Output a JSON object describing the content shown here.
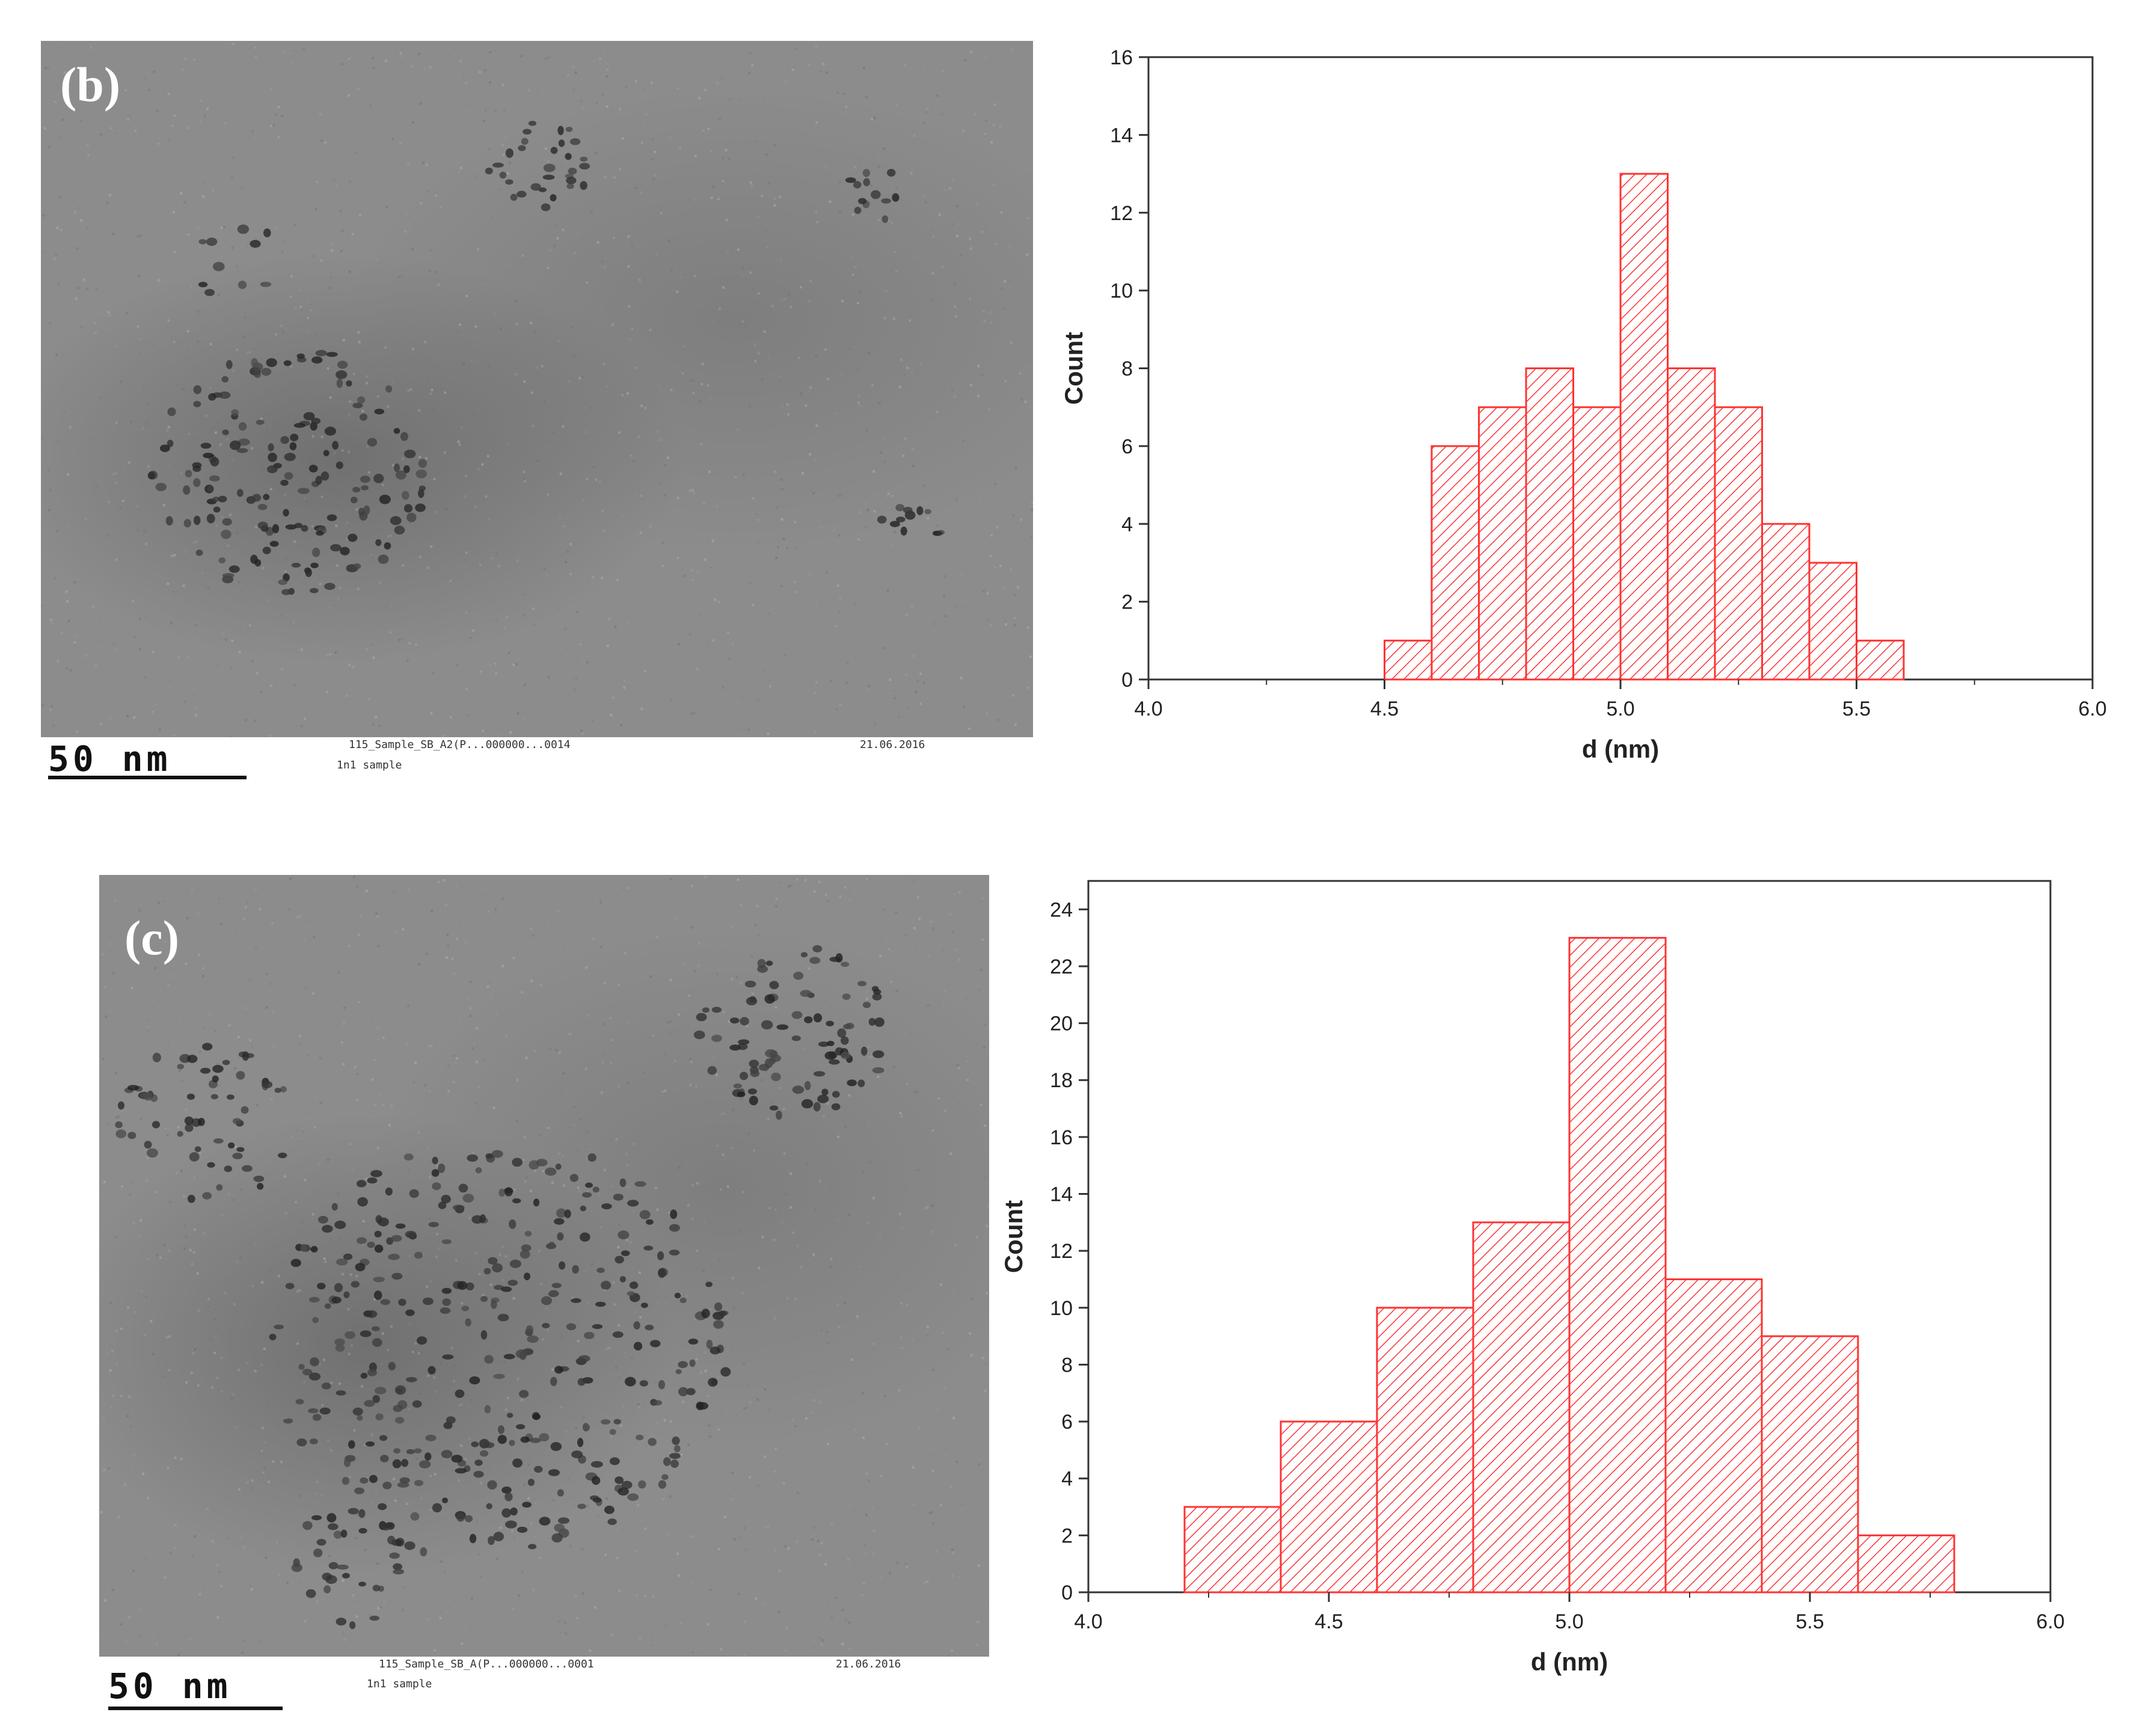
{
  "panels": [
    {
      "label": "(b)",
      "scalebar": "50 nm",
      "footer_left": "115_Sample_SB_A2(P...000000...0014",
      "footer_right": "21.06.2016",
      "footer_sub": "1n1 sample"
    },
    {
      "label": "(c)",
      "scalebar": "50 nm",
      "footer_left": "115_Sample_SB_A(P...000000...0001",
      "footer_right": "21.06.2016",
      "footer_sub": "1n1 sample"
    }
  ],
  "chart_data": [
    {
      "type": "bar",
      "histogram": true,
      "bin_edges": [
        4.5,
        4.6,
        4.7,
        4.8,
        4.9,
        5.0,
        5.1,
        5.2,
        5.3,
        5.4,
        5.5,
        5.6
      ],
      "values": [
        1,
        6,
        7,
        8,
        7,
        13,
        8,
        7,
        4,
        3,
        1
      ],
      "xlabel": "d (nm)",
      "ylabel": "Count",
      "xlim": [
        4.0,
        6.0
      ],
      "ylim": [
        0,
        16
      ],
      "xticks": [
        "4.0",
        "4.5",
        "5.0",
        "5.5",
        "6.0"
      ],
      "yticks": [
        "0",
        "2",
        "4",
        "6",
        "8",
        "10",
        "12",
        "14",
        "16"
      ],
      "grid": false,
      "bar_color": "#ff3333"
    },
    {
      "type": "bar",
      "histogram": true,
      "bin_edges": [
        4.2,
        4.4,
        4.6,
        4.8,
        5.0,
        5.2,
        5.4,
        5.6,
        5.8
      ],
      "values": [
        3,
        6,
        10,
        13,
        23,
        11,
        9,
        2
      ],
      "xlabel": "d (nm)",
      "ylabel": "Count",
      "xlim": [
        4.0,
        6.0
      ],
      "ylim": [
        0,
        25
      ],
      "xticks": [
        "4.0",
        "4.5",
        "5.0",
        "5.5",
        "6.0"
      ],
      "yticks": [
        "0",
        "2",
        "4",
        "6",
        "8",
        "10",
        "12",
        "14",
        "16",
        "18",
        "20",
        "22",
        "24"
      ],
      "grid": false,
      "bar_color": "#ff3333"
    }
  ]
}
